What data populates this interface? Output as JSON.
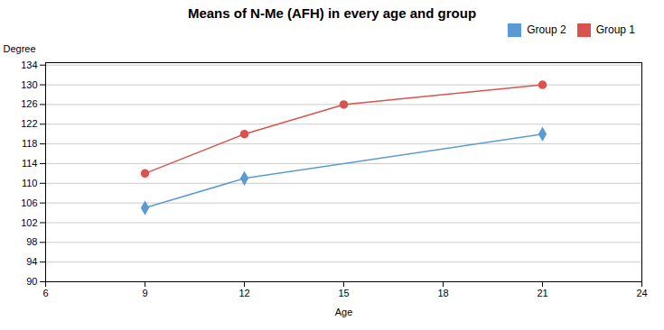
{
  "chart_data": {
    "type": "line",
    "title": "Means of N-Me (AFH) in every age and group",
    "xlabel": "Age",
    "ylabel": "Degree",
    "series": [
      {
        "name": "Group 2",
        "color": "#5B9BD5",
        "marker": "diamond",
        "x": [
          9,
          12,
          21
        ],
        "values": [
          105,
          111,
          120
        ]
      },
      {
        "name": "Group 1",
        "color": "#D9534F",
        "marker": "circle",
        "x": [
          9,
          12,
          15,
          21
        ],
        "values": [
          112,
          120,
          126,
          130
        ]
      }
    ],
    "xlim": [
      6,
      24
    ],
    "xticks": [
      6,
      9,
      12,
      15,
      18,
      21,
      24
    ],
    "ylim": [
      90,
      134.5
    ],
    "yticks": [
      90,
      94,
      98,
      102,
      106,
      110,
      114,
      118,
      122,
      126,
      130,
      134
    ],
    "grid": true,
    "legend": "right"
  }
}
